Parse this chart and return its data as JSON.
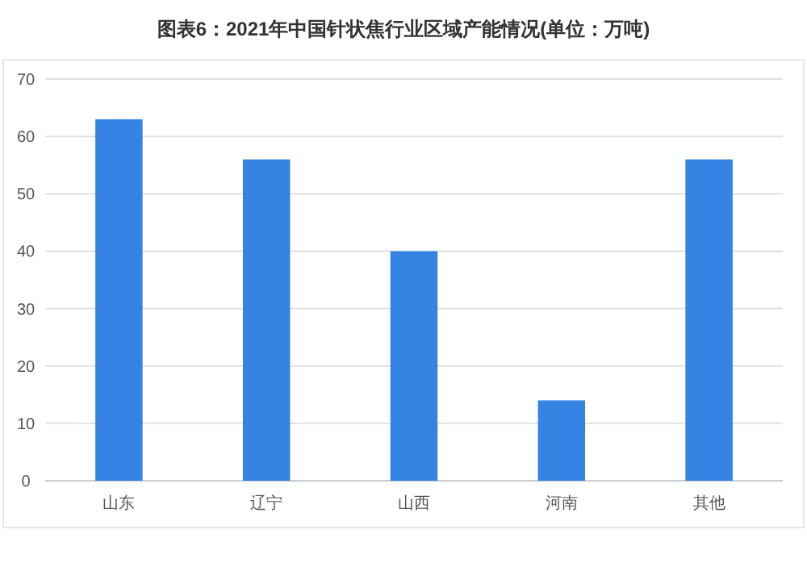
{
  "chart_data": {
    "type": "bar",
    "title": "图表6：2021年中国针状焦行业区域产能情况(单位：万吨)",
    "categories": [
      "山东",
      "辽宁",
      "山西",
      "河南",
      "其他"
    ],
    "values": [
      63,
      56,
      40,
      14,
      56
    ],
    "color": "#3584e4",
    "ylim": [
      0,
      70
    ],
    "yticks": [
      0,
      10,
      20,
      30,
      40,
      50,
      60,
      70
    ],
    "grid": "y"
  }
}
